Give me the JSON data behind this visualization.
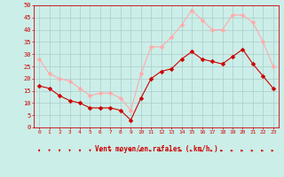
{
  "x": [
    0,
    1,
    2,
    3,
    4,
    5,
    6,
    7,
    8,
    9,
    10,
    11,
    12,
    13,
    14,
    15,
    16,
    17,
    18,
    19,
    20,
    21,
    22,
    23
  ],
  "vent_moyen": [
    17,
    16,
    13,
    11,
    10,
    8,
    8,
    8,
    7,
    3,
    12,
    20,
    23,
    24,
    28,
    31,
    28,
    27,
    26,
    29,
    32,
    26,
    21,
    16
  ],
  "rafales": [
    28,
    22,
    20,
    19,
    16,
    13,
    14,
    14,
    12,
    7,
    22,
    33,
    33,
    37,
    42,
    48,
    44,
    40,
    40,
    46,
    46,
    43,
    35,
    25
  ],
  "wind_dirs": [
    "S",
    "S",
    "S",
    "S",
    "S",
    "S",
    "S",
    "S",
    "S",
    "S",
    "E",
    "E",
    "E",
    "E",
    "E",
    "E",
    "E",
    "E",
    "E",
    "E",
    "E",
    "E",
    "E",
    "E"
  ],
  "xlabel": "Vent moyen/en rafales ( km/h )",
  "ylim": [
    0,
    50
  ],
  "yticks": [
    0,
    5,
    10,
    15,
    20,
    25,
    30,
    35,
    40,
    45,
    50
  ],
  "xlim": [
    -0.5,
    23.5
  ],
  "vent_color": "#cc0000",
  "rafales_color": "#ffaaaa",
  "bg_color": "#cceee8",
  "grid_color": "#aacccc",
  "axis_color": "#cc0000",
  "marker": "D",
  "marker_size": 2.5,
  "linewidth": 0.8
}
